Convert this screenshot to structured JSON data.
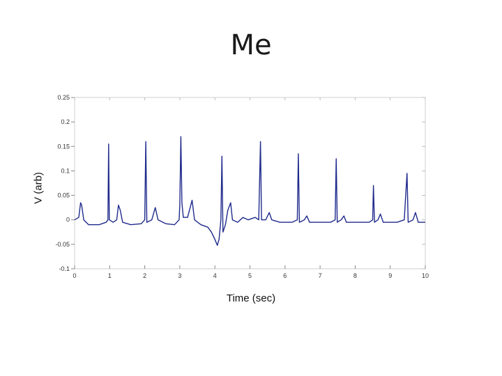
{
  "chart_data": {
    "type": "line",
    "title": "Me",
    "xlabel": "Time (sec)",
    "ylabel": "V (arb)",
    "xlim": [
      0,
      10
    ],
    "ylim": [
      -0.1,
      0.25
    ],
    "x_ticks": [
      "0",
      "1",
      "2",
      "3",
      "4",
      "5",
      "6",
      "7",
      "8",
      "9",
      "10"
    ],
    "y_ticks": [
      {
        "value": 0.25,
        "label": "0.25"
      },
      {
        "value": 0.2,
        "label": "0.2"
      },
      {
        "value": 0.15,
        "label": "0.15"
      },
      {
        "value": 0.1,
        "label": "0.1"
      },
      {
        "value": 0.05,
        "label": "0.05"
      },
      {
        "value": 0,
        "label": "0"
      },
      {
        "value": -0.05,
        "label": "-0.05"
      },
      {
        "value": -0.1,
        "label": "-0.1"
      }
    ],
    "grid": false,
    "legend": "none",
    "series": [
      {
        "color": "#1f2a8c",
        "points": [
          [
            0.0,
            0.0
          ],
          [
            0.12,
            0.005
          ],
          [
            0.17,
            0.035
          ],
          [
            0.2,
            0.03
          ],
          [
            0.26,
            0.0
          ],
          [
            0.4,
            -0.01
          ],
          [
            0.7,
            -0.01
          ],
          [
            0.9,
            -0.005
          ],
          [
            0.95,
            0.0
          ],
          [
            0.97,
            0.155
          ],
          [
            0.99,
            0.0
          ],
          [
            1.1,
            -0.005
          ],
          [
            1.2,
            0.0
          ],
          [
            1.25,
            0.03
          ],
          [
            1.3,
            0.02
          ],
          [
            1.37,
            -0.005
          ],
          [
            1.6,
            -0.01
          ],
          [
            1.9,
            -0.008
          ],
          [
            2.0,
            0.0
          ],
          [
            2.03,
            0.16
          ],
          [
            2.06,
            -0.005
          ],
          [
            2.2,
            0.0
          ],
          [
            2.3,
            0.025
          ],
          [
            2.38,
            0.0
          ],
          [
            2.6,
            -0.008
          ],
          [
            2.85,
            -0.01
          ],
          [
            2.98,
            0.0
          ],
          [
            3.0,
            0.03
          ],
          [
            3.03,
            0.17
          ],
          [
            3.06,
            0.035
          ],
          [
            3.1,
            0.005
          ],
          [
            3.22,
            0.005
          ],
          [
            3.35,
            0.04
          ],
          [
            3.42,
            0.0
          ],
          [
            3.6,
            -0.01
          ],
          [
            3.8,
            -0.015
          ],
          [
            3.9,
            -0.025
          ],
          [
            4.0,
            -0.04
          ],
          [
            4.07,
            -0.052
          ],
          [
            4.12,
            -0.04
          ],
          [
            4.17,
            0.0
          ],
          [
            4.2,
            0.13
          ],
          [
            4.23,
            -0.025
          ],
          [
            4.3,
            -0.01
          ],
          [
            4.37,
            0.02
          ],
          [
            4.45,
            0.035
          ],
          [
            4.5,
            0.0
          ],
          [
            4.65,
            -0.005
          ],
          [
            4.8,
            0.005
          ],
          [
            4.95,
            0.0
          ],
          [
            5.15,
            0.005
          ],
          [
            5.25,
            0.0
          ],
          [
            5.3,
            0.16
          ],
          [
            5.33,
            0.0
          ],
          [
            5.45,
            0.0
          ],
          [
            5.55,
            0.015
          ],
          [
            5.62,
            0.0
          ],
          [
            5.85,
            -0.005
          ],
          [
            6.2,
            -0.005
          ],
          [
            6.35,
            0.0
          ],
          [
            6.38,
            0.135
          ],
          [
            6.41,
            -0.005
          ],
          [
            6.55,
            0.0
          ],
          [
            6.62,
            0.008
          ],
          [
            6.7,
            -0.005
          ],
          [
            7.0,
            -0.005
          ],
          [
            7.3,
            -0.005
          ],
          [
            7.43,
            0.0
          ],
          [
            7.46,
            0.125
          ],
          [
            7.49,
            -0.005
          ],
          [
            7.6,
            0.0
          ],
          [
            7.68,
            0.008
          ],
          [
            7.75,
            -0.005
          ],
          [
            8.1,
            -0.005
          ],
          [
            8.4,
            -0.005
          ],
          [
            8.5,
            0.0
          ],
          [
            8.52,
            0.07
          ],
          [
            8.55,
            -0.005
          ],
          [
            8.65,
            0.0
          ],
          [
            8.72,
            0.012
          ],
          [
            8.8,
            -0.005
          ],
          [
            9.2,
            -0.005
          ],
          [
            9.4,
            0.0
          ],
          [
            9.48,
            0.095
          ],
          [
            9.51,
            -0.005
          ],
          [
            9.65,
            0.0
          ],
          [
            9.72,
            0.015
          ],
          [
            9.8,
            -0.005
          ],
          [
            10.0,
            -0.005
          ]
        ]
      }
    ]
  }
}
